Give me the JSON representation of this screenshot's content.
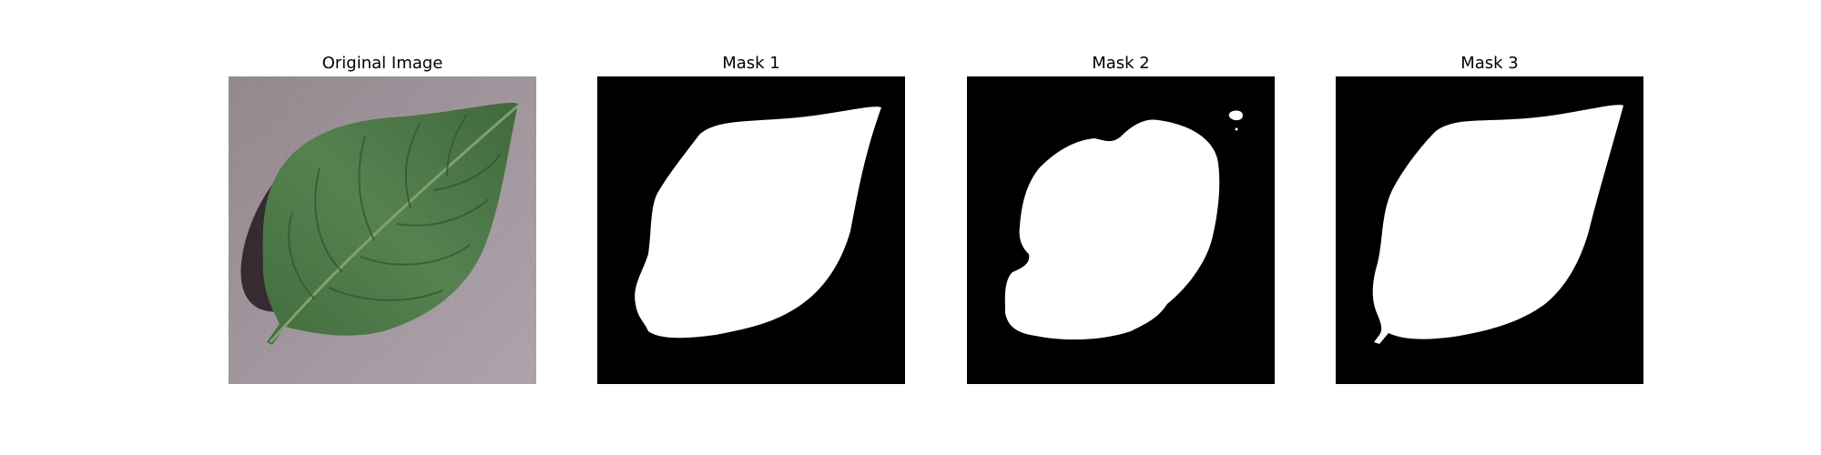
{
  "figure": {
    "panels": [
      {
        "title": "Original Image",
        "kind": "leaf-photo"
      },
      {
        "title": "Mask 1",
        "kind": "mask"
      },
      {
        "title": "Mask 2",
        "kind": "mask"
      },
      {
        "title": "Mask 3",
        "kind": "mask"
      }
    ]
  },
  "colors": {
    "background": "#ffffff",
    "mask_background": "#000000",
    "mask_foreground": "#ffffff",
    "photo_background": "#8e8088",
    "leaf_dark": "#2f5a2f",
    "leaf_mid": "#4a7a45",
    "leaf_light": "#6f9a66",
    "shadow": "#241a1f"
  }
}
